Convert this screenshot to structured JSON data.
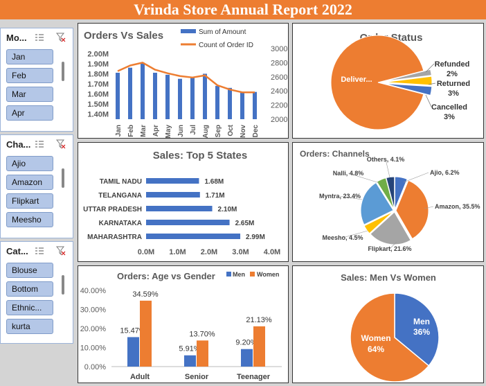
{
  "banner": {
    "title": "Vrinda Store Annual Report 2022"
  },
  "slicers": [
    {
      "title": "Mo...",
      "items": [
        "Jan",
        "Feb",
        "Mar",
        "Apr"
      ]
    },
    {
      "title": "Cha...",
      "items": [
        "Ajio",
        "Amazon",
        "Flipkart",
        "Meesho"
      ]
    },
    {
      "title": "Cat...",
      "items": [
        "Blouse",
        "Bottom",
        "Ethnic...",
        "kurta"
      ]
    }
  ],
  "colors": {
    "blue": "#4472c4",
    "orange": "#ed7d31",
    "gray": "#a5a5a5",
    "yellow": "#ffc000",
    "lightblue": "#5b9bd5",
    "green": "#70ad47",
    "navy": "#264478",
    "banner": "#ed7d31"
  },
  "chart_data": [
    {
      "type": "bar+line",
      "title": "Orders Vs Sales",
      "categories": [
        "Jan",
        "Feb",
        "Mar",
        "Apr",
        "May",
        "Jun",
        "Jul",
        "Aug",
        "Sep",
        "Oct",
        "Nov",
        "Dec"
      ],
      "series": [
        {
          "name": "Sum of Amount",
          "type": "bar",
          "axis": "left",
          "values": [
            1.81,
            1.86,
            1.91,
            1.81,
            1.79,
            1.75,
            1.76,
            1.8,
            1.68,
            1.66,
            1.62,
            1.62
          ]
        },
        {
          "name": "Count of Order ID",
          "type": "line",
          "axis": "right",
          "values": [
            2680,
            2760,
            2800,
            2700,
            2650,
            2610,
            2590,
            2620,
            2480,
            2420,
            2380,
            2380
          ]
        }
      ],
      "y_left_ticks": [
        "2.00M",
        "1.90M",
        "1.80M",
        "1.70M",
        "1.60M",
        "1.50M",
        "1.40M"
      ],
      "y_right_ticks": [
        "3000",
        "2800",
        "2600",
        "2400",
        "2200",
        "2000"
      ],
      "ylim_left": [
        1.35,
        2.05
      ],
      "ylim_right": [
        2000,
        3000
      ]
    },
    {
      "type": "pie",
      "title": "Order Status",
      "labels": [
        "Deliver...",
        "Refunded",
        "Returned",
        "Cancelled"
      ],
      "values": [
        92,
        2,
        3,
        3
      ],
      "value_labels": [
        "",
        "2%",
        "3%",
        "3%"
      ]
    },
    {
      "type": "bar",
      "orientation": "horizontal",
      "title": "Sales: Top 5 States",
      "categories": [
        "TAMIL NADU",
        "TELANGANA",
        "UTTAR PRADESH",
        "KARNATAKA",
        "MAHARASHTRA"
      ],
      "values": [
        1.68,
        1.71,
        2.1,
        2.65,
        2.99
      ],
      "value_labels": [
        "1.68M",
        "1.71M",
        "2.10M",
        "2.65M",
        "2.99M"
      ],
      "x_ticks": [
        "0.0M",
        "1.0M",
        "2.0M",
        "3.0M",
        "4.0M"
      ],
      "xlim": [
        0,
        4
      ]
    },
    {
      "type": "pie",
      "title": "Orders: Channels",
      "labels": [
        "Ajio, 6.2%",
        "Amazon, 35.5%",
        "Flipkart, 21.6%",
        "Meesho, 4.5%",
        "Myntra, 23.4%",
        "Nalli, 4.8%",
        "Others, 4.1%"
      ],
      "values": [
        6.2,
        35.5,
        21.6,
        4.5,
        23.4,
        4.8,
        4.1
      ]
    },
    {
      "type": "bar",
      "title": "Orders: Age vs Gender",
      "categories": [
        "Adult",
        "Senior",
        "Teenager"
      ],
      "series": [
        {
          "name": "Men",
          "values": [
            15.47,
            5.91,
            9.2
          ],
          "labels": [
            "15.47%",
            "5.91%",
            "9.20%"
          ]
        },
        {
          "name": "Women",
          "values": [
            34.59,
            13.7,
            21.13
          ],
          "labels": [
            "34.59%",
            "13.70%",
            "21.13%"
          ]
        }
      ],
      "y_ticks": [
        "40.00%",
        "30.00%",
        "20.00%",
        "10.00%",
        "0.00%"
      ],
      "ylim": [
        0,
        40
      ]
    },
    {
      "type": "pie",
      "title": "Sales: Men Vs Women",
      "labels": [
        "Men",
        "Women"
      ],
      "value_labels": [
        "36%",
        "64%"
      ],
      "values": [
        36,
        64
      ]
    }
  ]
}
